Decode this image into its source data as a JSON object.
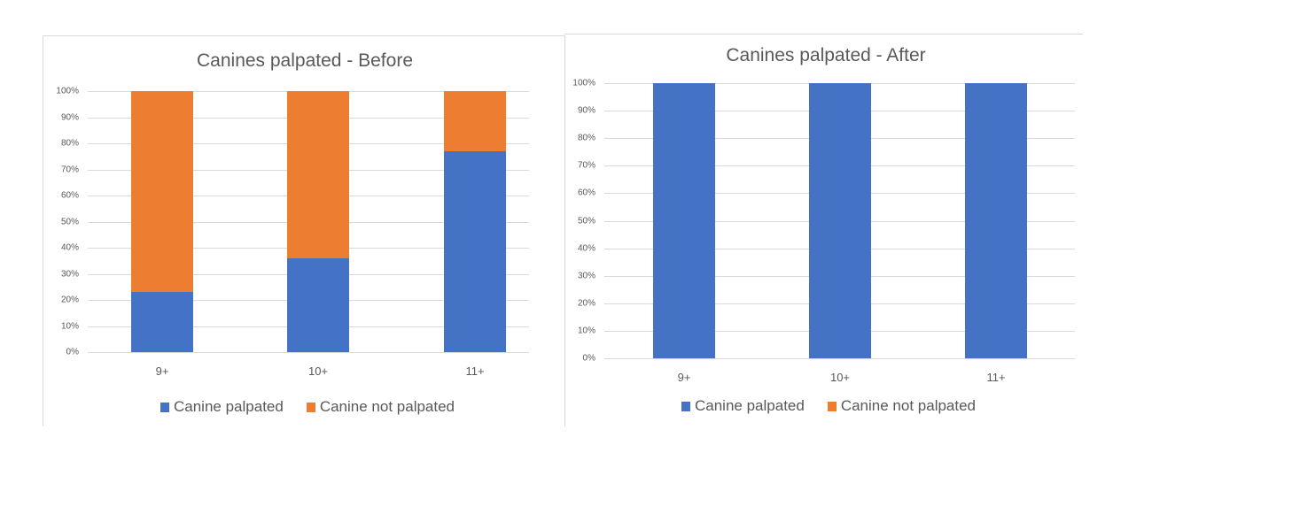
{
  "colors": {
    "palpated": "#4472c4",
    "not_palpated": "#ed7d31",
    "grid": "#d9d9d9",
    "text": "#595959"
  },
  "chart_data": [
    {
      "type": "bar",
      "stacked": true,
      "percent": true,
      "title": "Canines palpated - Before",
      "categories": [
        "9+",
        "10+",
        "11+"
      ],
      "series": [
        {
          "name": "Canine palpated",
          "values": [
            23,
            36,
            77
          ]
        },
        {
          "name": "Canine not palpated",
          "values": [
            77,
            64,
            23
          ]
        }
      ],
      "yticks": [
        "0%",
        "10%",
        "20%",
        "30%",
        "40%",
        "50%",
        "60%",
        "70%",
        "80%",
        "90%",
        "100%"
      ],
      "ylim": [
        0,
        100
      ],
      "xlabel": "",
      "ylabel": "",
      "grid": true,
      "legend_position": "bottom"
    },
    {
      "type": "bar",
      "stacked": true,
      "percent": true,
      "title": "Canines palpated - After",
      "categories": [
        "9+",
        "10+",
        "11+"
      ],
      "series": [
        {
          "name": "Canine palpated",
          "values": [
            100,
            100,
            100
          ]
        },
        {
          "name": "Canine not palpated",
          "values": [
            0,
            0,
            0
          ]
        }
      ],
      "yticks": [
        "0%",
        "10%",
        "20%",
        "30%",
        "40%",
        "50%",
        "60%",
        "70%",
        "80%",
        "90%",
        "100%"
      ],
      "ylim": [
        0,
        100
      ],
      "xlabel": "",
      "ylabel": "",
      "grid": true,
      "legend_position": "bottom"
    }
  ],
  "before": {
    "title": "Canines palpated - Before",
    "legend": [
      "Canine palpated",
      "Canine not palpated"
    ],
    "categories": [
      "9+",
      "10+",
      "11+"
    ],
    "yticks": [
      "0%",
      "10%",
      "20%",
      "30%",
      "40%",
      "50%",
      "60%",
      "70%",
      "80%",
      "90%",
      "100%"
    ]
  },
  "after": {
    "title": "Canines palpated - After",
    "legend": [
      "Canine palpated",
      "Canine not palpated"
    ],
    "categories": [
      "9+",
      "10+",
      "11+"
    ],
    "yticks": [
      "0%",
      "10%",
      "20%",
      "30%",
      "40%",
      "50%",
      "60%",
      "70%",
      "80%",
      "90%",
      "100%"
    ]
  }
}
